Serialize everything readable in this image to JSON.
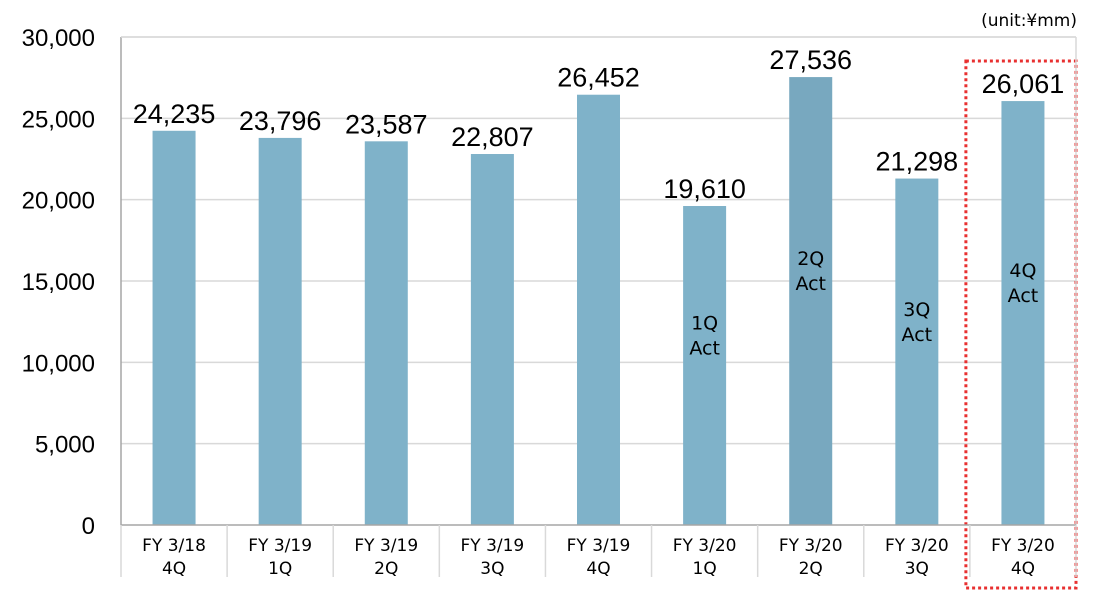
{
  "unit_label": "(unit:¥mm)",
  "colors": {
    "bar": "#7fb2c9",
    "bar_highlight": "#78a8bf",
    "grid": "#d9d9d9",
    "axis": "#a6a6a6",
    "highlight_box": "#e83030"
  },
  "chart_data": {
    "type": "bar",
    "categories": [
      [
        "FY 3/18",
        "4Q"
      ],
      [
        "FY 3/19",
        "1Q"
      ],
      [
        "FY 3/19",
        "2Q"
      ],
      [
        "FY 3/19",
        "3Q"
      ],
      [
        "FY 3/19",
        "4Q"
      ],
      [
        "FY 3/20",
        "1Q"
      ],
      [
        "FY 3/20",
        "2Q"
      ],
      [
        "FY 3/20",
        "3Q"
      ],
      [
        "FY 3/20",
        "4Q"
      ]
    ],
    "values": [
      24235,
      23796,
      23587,
      22807,
      26452,
      19610,
      27536,
      21298,
      26061
    ],
    "data_labels": [
      "24,235",
      "23,796",
      "23,587",
      "22,807",
      "26,452",
      "19,610",
      "27,536",
      "21,298",
      "26,061"
    ],
    "bar_annotations": [
      null,
      null,
      null,
      null,
      null,
      [
        "1Q",
        "Act"
      ],
      [
        "2Q",
        "Act"
      ],
      [
        "3Q",
        "Act"
      ],
      [
        "4Q",
        "Act"
      ]
    ],
    "darker_bar_index": 6,
    "highlighted_index": 8,
    "ylim": [
      0,
      30000
    ],
    "yticks": [
      0,
      5000,
      10000,
      15000,
      20000,
      25000,
      30000
    ],
    "ytick_labels": [
      "0",
      "5,000",
      "10,000",
      "15,000",
      "20,000",
      "25,000",
      "30,000"
    ],
    "grid": true,
    "title": "",
    "xlabel": "",
    "ylabel": ""
  }
}
